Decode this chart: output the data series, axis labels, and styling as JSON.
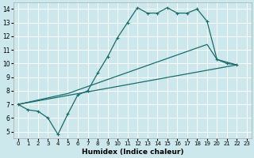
{
  "xlabel": "Humidex (Indice chaleur)",
  "bg_color": "#cce8ec",
  "grid_color": "#ffffff",
  "line_color": "#1a6b6b",
  "xlim": [
    -0.5,
    23.5
  ],
  "ylim": [
    4.5,
    14.5
  ],
  "xtick_labels": [
    "0",
    "1",
    "2",
    "3",
    "4",
    "5",
    "6",
    "7",
    "8",
    "9",
    "10",
    "11",
    "12",
    "13",
    "14",
    "15",
    "16",
    "17",
    "18",
    "19",
    "20",
    "21",
    "22",
    "23"
  ],
  "xticks": [
    0,
    1,
    2,
    3,
    4,
    5,
    6,
    7,
    8,
    9,
    10,
    11,
    12,
    13,
    14,
    15,
    16,
    17,
    18,
    19,
    20,
    21,
    22,
    23
  ],
  "yticks": [
    5,
    6,
    7,
    8,
    9,
    10,
    11,
    12,
    13,
    14
  ],
  "curve1_x": [
    0,
    1,
    2,
    3,
    4,
    5,
    6,
    7,
    8,
    9,
    10,
    11,
    12,
    13,
    14,
    15,
    16,
    17,
    18,
    19,
    20,
    21,
    22
  ],
  "curve1_y": [
    7.0,
    6.6,
    6.5,
    6.0,
    4.8,
    6.3,
    7.7,
    8.0,
    9.3,
    10.5,
    11.9,
    13.0,
    14.1,
    13.7,
    13.7,
    14.1,
    13.7,
    13.7,
    14.0,
    13.1,
    10.3,
    10.0,
    9.9
  ],
  "curve2_x": [
    0,
    5,
    19,
    20,
    22
  ],
  "curve2_y": [
    7.0,
    7.8,
    11.4,
    10.3,
    9.9
  ],
  "curve3_x": [
    0,
    22
  ],
  "curve3_y": [
    7.0,
    9.9
  ]
}
